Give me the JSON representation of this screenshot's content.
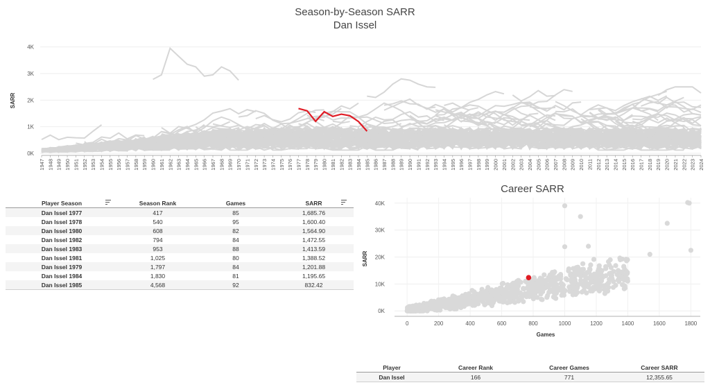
{
  "header": {
    "title": "Season-by-Season SARR",
    "subtitle": "Dan Issel"
  },
  "line_chart": {
    "ylabel": "SARR",
    "yticks": [
      {
        "v": 0,
        "label": "0K"
      },
      {
        "v": 1000,
        "label": "1K"
      },
      {
        "v": 2000,
        "label": "2K"
      },
      {
        "v": 3000,
        "label": "3K"
      },
      {
        "v": 4000,
        "label": "4K"
      }
    ],
    "xmin": 1947,
    "xmax": 2024,
    "ymax": 4200,
    "colors": {
      "background_lines": "#d6d6d6",
      "highlight": "#e01b24",
      "axis": "#999999"
    }
  },
  "chart_data": [
    {
      "type": "line",
      "title": "Season-by-Season SARR",
      "subtitle": "Dan Issel",
      "ylabel": "SARR",
      "xlabel": "",
      "ylim": [
        0,
        4200
      ],
      "x_range": [
        1947,
        2024
      ],
      "highlight_series": {
        "name": "Dan Issel",
        "points": [
          [
            1977,
            1685.76
          ],
          [
            1978,
            1600.4
          ],
          [
            1979,
            1201.88
          ],
          [
            1980,
            1564.9
          ],
          [
            1981,
            1388.52
          ],
          [
            1982,
            1472.55
          ],
          [
            1983,
            1413.59
          ],
          [
            1984,
            1195.65
          ],
          [
            1985,
            832.42
          ]
        ]
      },
      "notable_background_series": [
        {
          "points": [
            [
              1960,
              2780
            ],
            [
              1961,
              2950
            ],
            [
              1962,
              3950
            ],
            [
              1963,
              3650
            ],
            [
              1964,
              3350
            ],
            [
              1965,
              3250
            ],
            [
              1966,
              2900
            ],
            [
              1967,
              2950
            ],
            [
              1968,
              3250
            ],
            [
              1969,
              3100
            ],
            [
              1970,
              2750
            ]
          ]
        },
        {
          "points": [
            [
              1985,
              2150
            ],
            [
              1986,
              2100
            ],
            [
              1987,
              2300
            ],
            [
              1988,
              2600
            ],
            [
              1989,
              2800
            ],
            [
              1990,
              2750
            ],
            [
              1991,
              2600
            ],
            [
              1992,
              2500
            ],
            [
              1993,
              2480
            ]
          ]
        }
      ]
    },
    {
      "type": "scatter",
      "title": "Career SARR",
      "xlabel": "Games",
      "ylabel": "SARR",
      "xlim": [
        -80,
        1860
      ],
      "ylim": [
        -2000,
        42000
      ],
      "highlight_point": {
        "name": "Dan Issel",
        "x": 771,
        "y": 12355.65
      },
      "notable_points": [
        [
          1780,
          40200
        ],
        [
          1790,
          40000
        ],
        [
          1000,
          39000
        ],
        [
          1100,
          35000
        ],
        [
          1650,
          32500
        ],
        [
          1800,
          22500
        ],
        [
          1540,
          21000
        ],
        [
          1000,
          23800
        ],
        [
          1150,
          24000
        ]
      ]
    }
  ],
  "scatter": {
    "title": "Career SARR",
    "xlabel": "Games",
    "ylabel": "SARR",
    "xticks": [
      {
        "v": 0,
        "label": "0"
      },
      {
        "v": 200,
        "label": "200"
      },
      {
        "v": 400,
        "label": "400"
      },
      {
        "v": 600,
        "label": "600"
      },
      {
        "v": 800,
        "label": "800"
      },
      {
        "v": 1000,
        "label": "1000"
      },
      {
        "v": 1200,
        "label": "1200"
      },
      {
        "v": 1400,
        "label": "1400"
      },
      {
        "v": 1600,
        "label": "1600"
      },
      {
        "v": 1800,
        "label": "1800"
      }
    ],
    "yticks": [
      {
        "v": 0,
        "label": "0K"
      },
      {
        "v": 10000,
        "label": "10K"
      },
      {
        "v": 20000,
        "label": "20K"
      },
      {
        "v": 30000,
        "label": "30K"
      },
      {
        "v": 40000,
        "label": "40K"
      }
    ],
    "colors": {
      "points": "#d9d9d9",
      "highlight": "#e01b24"
    }
  },
  "season_table": {
    "headers": {
      "player_season": "Player Season",
      "season_rank": "Season Rank",
      "games": "Games",
      "sarr": "SARR"
    },
    "rows": [
      {
        "player_season": "Dan Issel 1977",
        "season_rank": "417",
        "games": "85",
        "sarr": "1,685.76"
      },
      {
        "player_season": "Dan Issel 1978",
        "season_rank": "540",
        "games": "95",
        "sarr": "1,600.40"
      },
      {
        "player_season": "Dan Issel 1980",
        "season_rank": "608",
        "games": "82",
        "sarr": "1,564.90"
      },
      {
        "player_season": "Dan Issel 1982",
        "season_rank": "794",
        "games": "84",
        "sarr": "1,472.55"
      },
      {
        "player_season": "Dan Issel 1983",
        "season_rank": "953",
        "games": "88",
        "sarr": "1,413.59"
      },
      {
        "player_season": "Dan Issel 1981",
        "season_rank": "1,025",
        "games": "80",
        "sarr": "1,388.52"
      },
      {
        "player_season": "Dan Issel 1979",
        "season_rank": "1,797",
        "games": "84",
        "sarr": "1,201.88"
      },
      {
        "player_season": "Dan Issel 1984",
        "season_rank": "1,830",
        "games": "81",
        "sarr": "1,195.65"
      },
      {
        "player_season": "Dan Issel 1985",
        "season_rank": "4,568",
        "games": "92",
        "sarr": "832.42"
      }
    ]
  },
  "career_table": {
    "headers": {
      "player": "Player",
      "career_rank": "Career Rank",
      "career_games": "Career Games",
      "career_sarr": "Career SARR"
    },
    "row": {
      "player": "Dan Issel",
      "career_rank": "166",
      "career_games": "771",
      "career_sarr": "12,355.65"
    }
  }
}
